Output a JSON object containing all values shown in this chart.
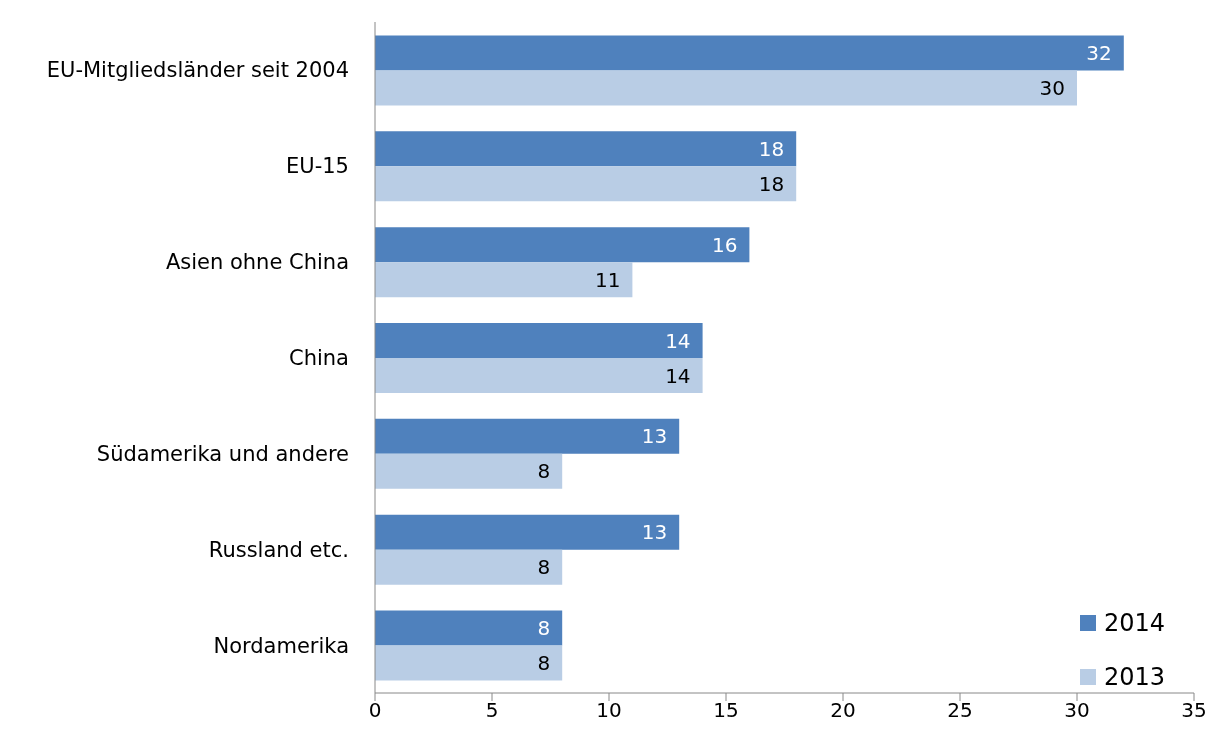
{
  "chart_data": {
    "type": "bar",
    "orientation": "horizontal",
    "categories": [
      "EU-Mitgliedsländer seit 2004",
      "EU-15",
      "Asien ohne China",
      "China",
      "Südamerika und andere",
      "Russland etc.",
      "Nordamerika"
    ],
    "series": [
      {
        "name": "2014",
        "color": "#4f81bd",
        "values": [
          32,
          18,
          16,
          14,
          13,
          13,
          8
        ]
      },
      {
        "name": "2013",
        "color": "#b9cde5",
        "values": [
          30,
          18,
          11,
          14,
          8,
          8,
          8
        ]
      }
    ],
    "xlim": [
      0,
      35
    ],
    "xticks": [
      0,
      5,
      10,
      15,
      20,
      25,
      30,
      35
    ],
    "data_labels": true,
    "legend": "bottom right",
    "grid": false
  }
}
